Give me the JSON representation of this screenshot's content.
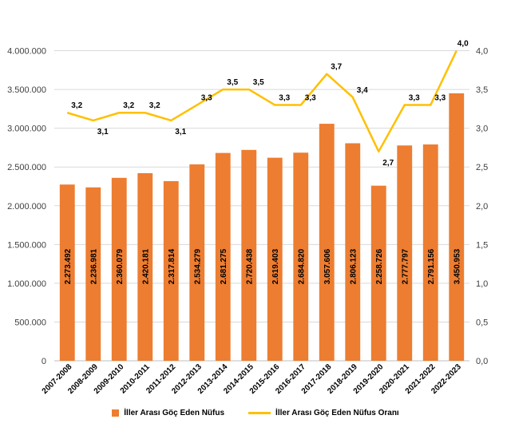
{
  "chart_data": {
    "type": "bar",
    "categories": [
      "2007-2008",
      "2008-2009",
      "2009-2010",
      "2010-2011",
      "2011-2012",
      "2012-2013",
      "2013-2014",
      "2014-2015",
      "2015-2016",
      "2016-2017",
      "2017-2018",
      "2018-2019",
      "2019-2020",
      "2020-2021",
      "2021-2022",
      "2022-2023"
    ],
    "series": [
      {
        "name": "İller Arası Göç Eden Nüfus",
        "type": "bar",
        "axis": "left",
        "color": "#ED7D31",
        "values": [
          2273492,
          2236981,
          2360079,
          2420181,
          2317814,
          2534279,
          2681275,
          2720438,
          2619403,
          2684820,
          3057606,
          2806123,
          2258726,
          2777797,
          2791156,
          3450953
        ],
        "labels": [
          "2.273.492",
          "2.236.981",
          "2.360.079",
          "2.420.181",
          "2.317.814",
          "2.534.279",
          "2.681.275",
          "2.720.438",
          "2.619.403",
          "2.684.820",
          "3.057.606",
          "2.806.123",
          "2.258.726",
          "2.777.797",
          "2.791.156",
          "3.450.953"
        ]
      },
      {
        "name": "İller Arası Göç Eden Nüfus Oranı",
        "type": "line",
        "axis": "right",
        "color": "#FFC000",
        "values": [
          3.2,
          3.1,
          3.2,
          3.2,
          3.1,
          3.3,
          3.5,
          3.5,
          3.3,
          3.3,
          3.7,
          3.4,
          2.7,
          3.3,
          3.3,
          4.0
        ],
        "labels": [
          "3,2",
          "3,1",
          "3,2",
          "3,2",
          "3,1",
          "3,3",
          "3,5",
          "3,5",
          "3,3",
          "3,3",
          "3,7",
          "3,4",
          "2,7",
          "3,3",
          "3,3",
          "4,0"
        ]
      }
    ],
    "ylim_left": [
      0,
      4500000
    ],
    "ylim_right": [
      0,
      4.5
    ],
    "left_ticks": [
      0,
      500000,
      1000000,
      1500000,
      2000000,
      2500000,
      3000000,
      3500000,
      4000000
    ],
    "left_tick_labels": [
      "0",
      "500.000",
      "1.000.000",
      "1.500.000",
      "2.000.000",
      "2.500.000",
      "3.000.000",
      "3.500.000",
      "4.000.000"
    ],
    "right_ticks": [
      0,
      0.5,
      1,
      1.5,
      2,
      2.5,
      3,
      3.5,
      4
    ],
    "right_tick_labels": [
      "0,0",
      "0,5",
      "1,0",
      "1,5",
      "2,0",
      "2,5",
      "3,0",
      "3,5",
      "4,0"
    ],
    "grid": true,
    "legend_position": "bottom"
  }
}
